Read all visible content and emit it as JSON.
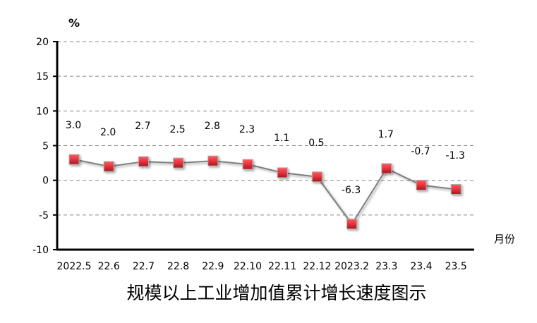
{
  "chart_data": {
    "type": "line",
    "title": "规模以上工业增加值累计增长速度图示",
    "ylabel": "%",
    "xlabel": "月份",
    "categories": [
      "2022.5",
      "22.6",
      "22.7",
      "22.8",
      "22.9",
      "22.10",
      "22.11",
      "22.12",
      "2023.2",
      "23.3",
      "23.4",
      "23.5"
    ],
    "values": [
      3.0,
      2.0,
      2.7,
      2.5,
      2.8,
      2.3,
      1.1,
      0.5,
      -6.3,
      1.7,
      -0.7,
      -1.3
    ],
    "data_labels": [
      "3.0",
      "2.0",
      "2.7",
      "2.5",
      "2.8",
      "2.3",
      "1.1",
      "0.5",
      "-6.3",
      "1.7",
      "-0.7",
      "-1.3"
    ],
    "ylim": [
      -10,
      20
    ],
    "yticks": [
      20,
      15,
      10,
      5,
      0,
      -5,
      -10
    ],
    "grid": "horizontal dashed",
    "legend": "none",
    "colors": {
      "line": "#808080",
      "marker": "#e8313a",
      "grid": "#888888"
    }
  }
}
